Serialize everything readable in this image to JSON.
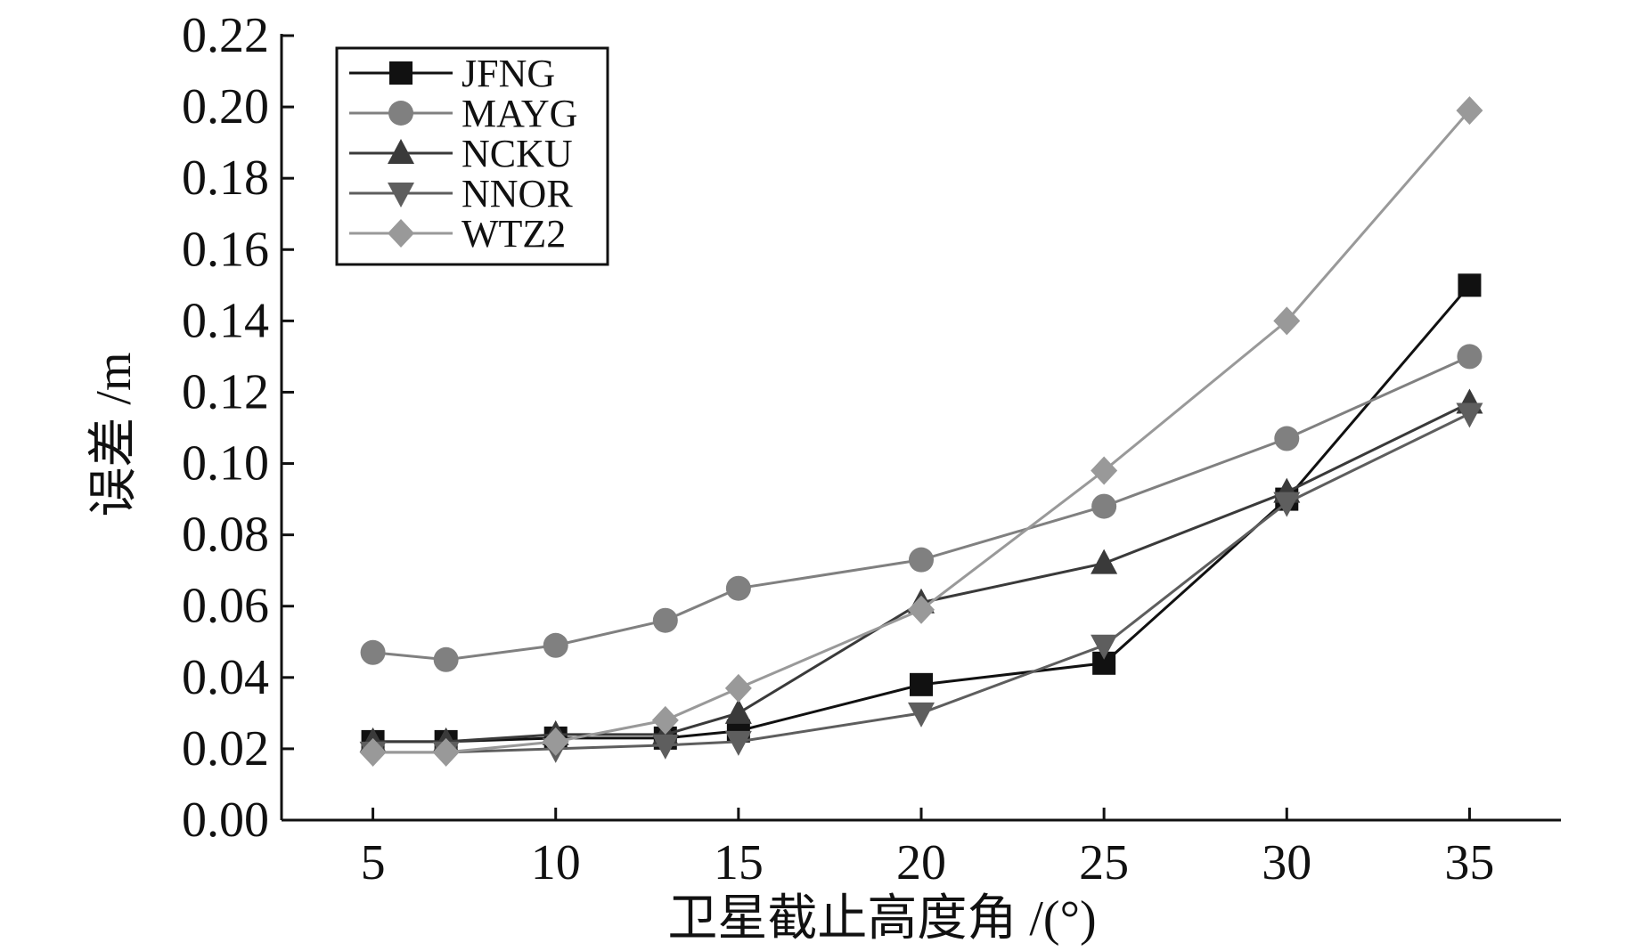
{
  "chart_data": {
    "type": "line",
    "title": "",
    "xlabel": "卫星截止高度角 /(°)",
    "ylabel": "误差 /m",
    "x": [
      5,
      7,
      10,
      13,
      15,
      20,
      25,
      30,
      35
    ],
    "xticks": [
      5,
      10,
      15,
      20,
      25,
      30,
      35
    ],
    "xtick_labels": [
      "5",
      "10",
      "15",
      "20",
      "25",
      "30",
      "35"
    ],
    "xlim": [
      2.5,
      37.5
    ],
    "yticks": [
      0.0,
      0.02,
      0.04,
      0.06,
      0.08,
      0.1,
      0.12,
      0.14,
      0.16,
      0.18,
      0.2,
      0.22
    ],
    "ytick_labels": [
      "0.00",
      "0.02",
      "0.04",
      "0.06",
      "0.08",
      "0.10",
      "0.12",
      "0.14",
      "0.16",
      "0.18",
      "0.20",
      "0.22"
    ],
    "ylim": [
      0,
      0.22
    ],
    "grid": false,
    "legend_position": "top-left",
    "series": [
      {
        "name": "JFNG",
        "marker": "square",
        "color": "#111111",
        "values": [
          0.022,
          0.022,
          0.023,
          0.023,
          0.025,
          0.038,
          0.044,
          0.09,
          0.15
        ]
      },
      {
        "name": "MAYG",
        "marker": "circle",
        "color": "#808080",
        "values": [
          0.047,
          0.045,
          0.049,
          0.056,
          0.065,
          0.073,
          0.088,
          0.107,
          0.13
        ]
      },
      {
        "name": "NCKU",
        "marker": "triangle-up",
        "color": "#3a3a3a",
        "values": [
          0.022,
          0.022,
          0.024,
          0.024,
          0.03,
          0.061,
          0.072,
          0.092,
          0.117
        ]
      },
      {
        "name": "NNOR",
        "marker": "triangle-down",
        "color": "#5e5e5e",
        "values": [
          0.019,
          0.019,
          0.02,
          0.021,
          0.022,
          0.03,
          0.049,
          0.089,
          0.114
        ]
      },
      {
        "name": "WTZ2",
        "marker": "diamond",
        "color": "#999999",
        "values": [
          0.019,
          0.019,
          0.022,
          0.028,
          0.037,
          0.059,
          0.098,
          0.14,
          0.199
        ]
      }
    ]
  }
}
